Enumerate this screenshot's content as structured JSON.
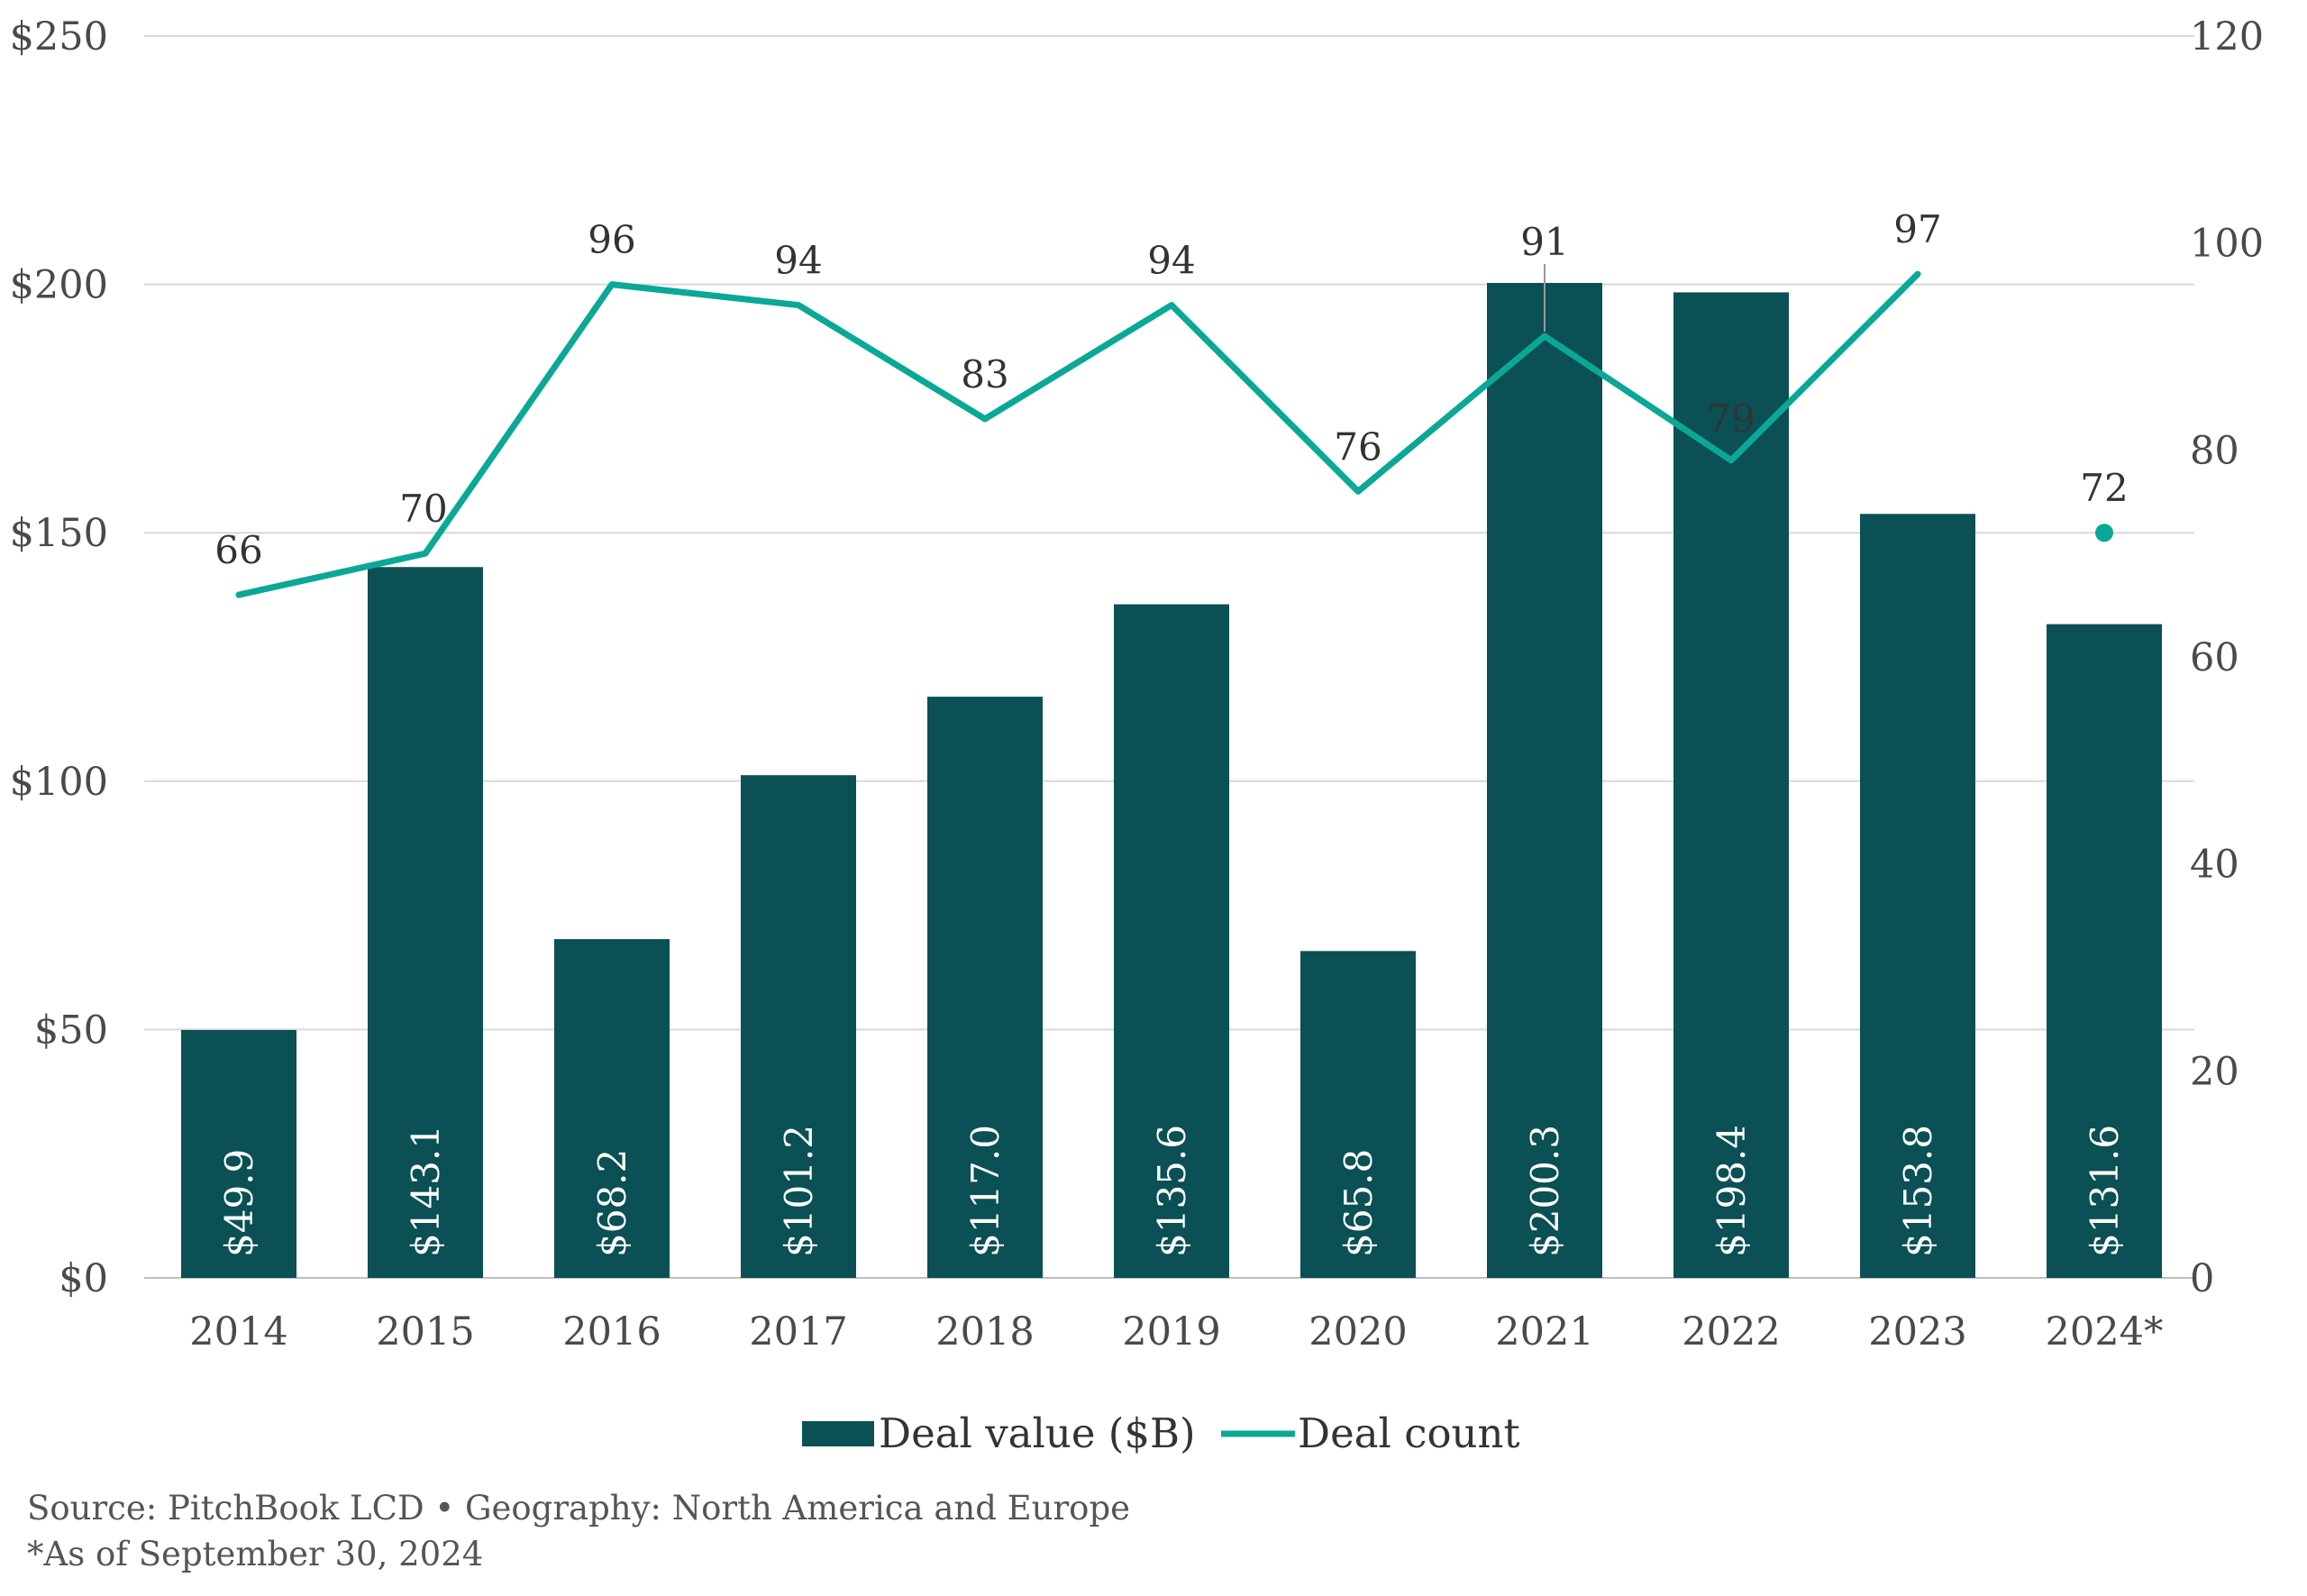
{
  "chart_data": {
    "type": "bar",
    "categories": [
      "2014",
      "2015",
      "2016",
      "2017",
      "2018",
      "2019",
      "2020",
      "2021",
      "2022",
      "2023",
      "2024*"
    ],
    "series": [
      {
        "name": "Deal value ($B)",
        "type": "bar",
        "axis": "left",
        "color": "#0a5055",
        "values": [
          49.9,
          143.1,
          68.2,
          101.2,
          117.0,
          135.6,
          65.8,
          200.3,
          198.4,
          153.8,
          131.6
        ],
        "labels": [
          "$49.9",
          "$143.1",
          "$68.2",
          "$101.2",
          "$117.0",
          "$135.6",
          "$65.8",
          "$200.3",
          "$198.4",
          "$153.8",
          "$131.6"
        ]
      },
      {
        "name": "Deal count",
        "type": "line",
        "axis": "right",
        "color": "#0aa896",
        "values": [
          66,
          70,
          96,
          94,
          83,
          94,
          76,
          91,
          79,
          97,
          72
        ],
        "labels": [
          "66",
          "70",
          "96",
          "94",
          "83",
          "94",
          "76",
          "91",
          "79",
          "97",
          "72"
        ],
        "last_point_marker_only": true
      }
    ],
    "y_left": {
      "ylim": [
        0,
        250
      ],
      "ticks": [
        0,
        50,
        100,
        150,
        200,
        250
      ],
      "tick_labels": [
        "$0",
        "$50",
        "$100",
        "$150",
        "$200",
        "$250"
      ]
    },
    "y_right": {
      "ylim": [
        0,
        120
      ],
      "ticks": [
        0,
        20,
        40,
        60,
        80,
        100,
        120
      ],
      "tick_labels": [
        "0",
        "20",
        "40",
        "60",
        "80",
        "100",
        "120"
      ]
    },
    "grid": true,
    "legend_position": "bottom-center",
    "title": "",
    "xlabel": "",
    "ylabel": ""
  },
  "legend": {
    "bar_label": "Deal value ($B)",
    "line_label": "Deal count"
  },
  "footnotes": {
    "source": "Source: PitchBook LCD • Geography: North America and Europe",
    "asof": "*As of September 30, 2024"
  }
}
